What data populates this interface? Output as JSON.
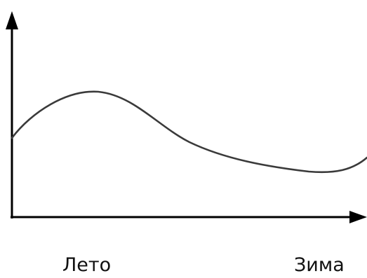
{
  "labels": {
    "summer": "Лето",
    "winter": "Зима"
  },
  "colors": {
    "axes": "#000000",
    "curve": "#3a3a3a",
    "text": "#111111",
    "background": "#ffffff"
  }
}
